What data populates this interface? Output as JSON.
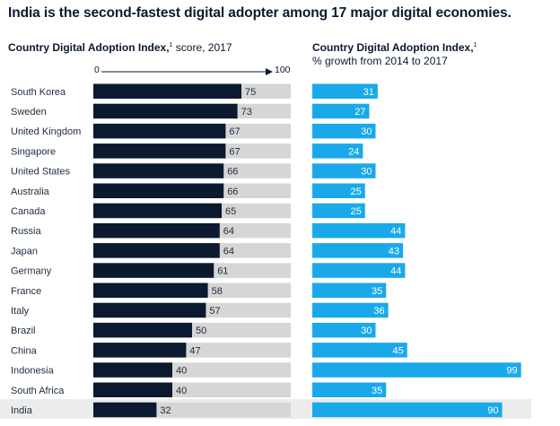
{
  "title": "India is the second-fastest digital adopter among 17 major digital economies.",
  "left_panel": {
    "heading_bold": "Country Digital Adoption Index,",
    "footnote": "1",
    "heading_rest": " score, 2017",
    "axis_min_label": "0",
    "axis_max_label": "100"
  },
  "right_panel": {
    "heading_bold": "Country Digital Adoption Index,",
    "footnote": "1",
    "heading_line2": "% growth from 2014 to 2017"
  },
  "colors": {
    "score_bar": "#0b1a2e",
    "score_track": "#d6d6d6",
    "growth_bar": "#19a9ea",
    "highlight_row": "#ececec"
  },
  "chart_data": [
    {
      "type": "bar",
      "orientation": "horizontal",
      "title": "Country Digital Adoption Index, score, 2017",
      "xlim": [
        0,
        100
      ],
      "categories": [
        "South Korea",
        "Sweden",
        "United Kingdom",
        "Singapore",
        "United States",
        "Australia",
        "Canada",
        "Russia",
        "Japan",
        "Germany",
        "France",
        "Italy",
        "Brazil",
        "China",
        "Indonesia",
        "South Africa",
        "India"
      ],
      "values": [
        75,
        73,
        67,
        67,
        66,
        66,
        65,
        64,
        64,
        61,
        58,
        57,
        50,
        47,
        40,
        40,
        32
      ]
    },
    {
      "type": "bar",
      "orientation": "horizontal",
      "title": "Country Digital Adoption Index, % growth from 2014 to 2017",
      "categories": [
        "South Korea",
        "Sweden",
        "United Kingdom",
        "Singapore",
        "United States",
        "Australia",
        "Canada",
        "Russia",
        "Japan",
        "Germany",
        "France",
        "Italy",
        "Brazil",
        "China",
        "Indonesia",
        "South Africa",
        "India"
      ],
      "values": [
        31,
        27,
        30,
        24,
        30,
        25,
        25,
        44,
        43,
        44,
        35,
        36,
        30,
        45,
        99,
        35,
        90
      ]
    }
  ]
}
